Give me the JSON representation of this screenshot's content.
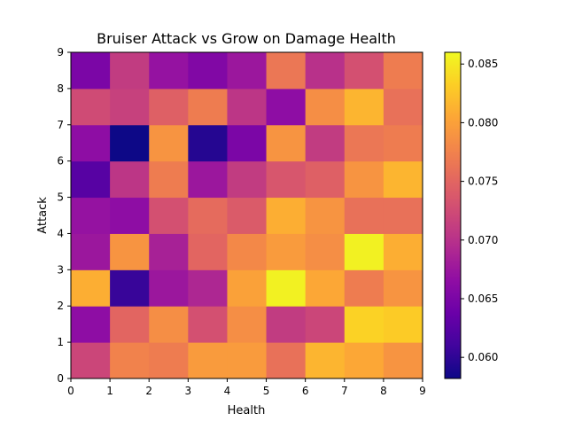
{
  "chart_data": {
    "type": "heatmap",
    "title": "Bruiser Attack vs Grow on Damage Health",
    "xlabel": "Health",
    "ylabel": "Attack",
    "xlim": [
      0,
      9
    ],
    "ylim": [
      0,
      9
    ],
    "x_ticks": [
      "0",
      "1",
      "2",
      "3",
      "4",
      "5",
      "6",
      "7",
      "8",
      "9"
    ],
    "y_ticks": [
      "0",
      "1",
      "2",
      "3",
      "4",
      "5",
      "6",
      "7",
      "8",
      "9"
    ],
    "colormap": "plasma",
    "color_range": [
      0.0582,
      0.086
    ],
    "colorbar_ticks": [
      "0.060",
      "0.065",
      "0.070",
      "0.075",
      "0.080",
      "0.085"
    ],
    "colorbar_tick_values": [
      0.06,
      0.065,
      0.07,
      0.075,
      0.08,
      0.085
    ],
    "grid": false,
    "rows_bottom_to_top": [
      [
        0.072,
        0.0775,
        0.077,
        0.0795,
        0.0795,
        0.076,
        0.0815,
        0.0805,
        0.079
      ],
      [
        0.0665,
        0.075,
        0.0785,
        0.073,
        0.0785,
        0.071,
        0.072,
        0.0835,
        0.083
      ],
      [
        0.081,
        0.0605,
        0.0675,
        0.069,
        0.08,
        0.0855,
        0.0805,
        0.077,
        0.079
      ],
      [
        0.0675,
        0.079,
        0.0685,
        0.075,
        0.078,
        0.0795,
        0.0785,
        0.0855,
        0.081
      ],
      [
        0.067,
        0.0665,
        0.073,
        0.0755,
        0.074,
        0.081,
        0.079,
        0.076,
        0.076
      ],
      [
        0.0625,
        0.0705,
        0.077,
        0.0675,
        0.071,
        0.0735,
        0.0745,
        0.079,
        0.0815
      ],
      [
        0.0665,
        0.0582,
        0.079,
        0.0595,
        0.065,
        0.079,
        0.071,
        0.0765,
        0.077
      ],
      [
        0.0725,
        0.0715,
        0.0745,
        0.077,
        0.0705,
        0.0665,
        0.0785,
        0.0815,
        0.076
      ],
      [
        0.065,
        0.071,
        0.067,
        0.0655,
        0.0675,
        0.0765,
        0.07,
        0.073,
        0.077
      ]
    ]
  }
}
